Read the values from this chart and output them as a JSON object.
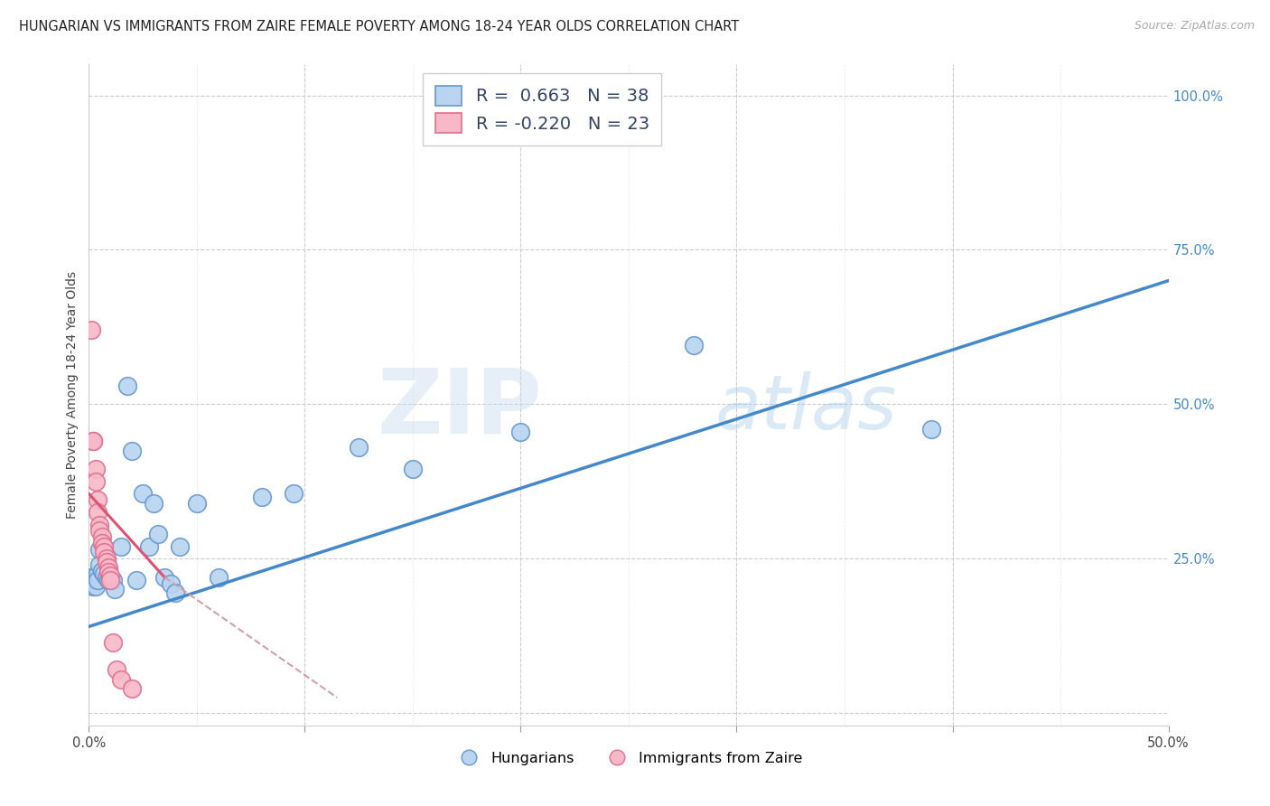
{
  "title": "HUNGARIAN VS IMMIGRANTS FROM ZAIRE FEMALE POVERTY AMONG 18-24 YEAR OLDS CORRELATION CHART",
  "source": "Source: ZipAtlas.com",
  "ylabel": "Female Poverty Among 18-24 Year Olds",
  "xlim": [
    0.0,
    0.5
  ],
  "ylim": [
    -0.02,
    1.05
  ],
  "background_color": "#ffffff",
  "grid_color": "#cccccc",
  "watermark_zip": "ZIP",
  "watermark_atlas": "atlas",
  "legend_label1": "Hungarians",
  "legend_label2": "Immigrants from Zaire",
  "blue_face": "#b8d4f0",
  "blue_edge": "#6699cc",
  "pink_face": "#f8b8c8",
  "pink_edge": "#e07090",
  "blue_line_color": "#4488cc",
  "pink_line_color": "#e05070",
  "pink_dash_color": "#d4a0a8",
  "blue_scatter": [
    [
      0.001,
      0.22
    ],
    [
      0.002,
      0.205
    ],
    [
      0.002,
      0.215
    ],
    [
      0.003,
      0.22
    ],
    [
      0.003,
      0.215
    ],
    [
      0.003,
      0.205
    ],
    [
      0.004,
      0.225
    ],
    [
      0.004,
      0.215
    ],
    [
      0.005,
      0.265
    ],
    [
      0.005,
      0.24
    ],
    [
      0.006,
      0.23
    ],
    [
      0.007,
      0.225
    ],
    [
      0.008,
      0.22
    ],
    [
      0.009,
      0.215
    ],
    [
      0.01,
      0.22
    ],
    [
      0.011,
      0.215
    ],
    [
      0.012,
      0.2
    ],
    [
      0.015,
      0.27
    ],
    [
      0.018,
      0.53
    ],
    [
      0.02,
      0.425
    ],
    [
      0.022,
      0.215
    ],
    [
      0.025,
      0.355
    ],
    [
      0.028,
      0.27
    ],
    [
      0.03,
      0.34
    ],
    [
      0.032,
      0.29
    ],
    [
      0.035,
      0.22
    ],
    [
      0.038,
      0.21
    ],
    [
      0.04,
      0.195
    ],
    [
      0.042,
      0.27
    ],
    [
      0.05,
      0.34
    ],
    [
      0.06,
      0.22
    ],
    [
      0.08,
      0.35
    ],
    [
      0.095,
      0.355
    ],
    [
      0.125,
      0.43
    ],
    [
      0.15,
      0.395
    ],
    [
      0.2,
      0.455
    ],
    [
      0.28,
      0.595
    ],
    [
      0.39,
      0.46
    ]
  ],
  "pink_scatter": [
    [
      0.001,
      0.62
    ],
    [
      0.002,
      0.44
    ],
    [
      0.002,
      0.44
    ],
    [
      0.003,
      0.395
    ],
    [
      0.003,
      0.375
    ],
    [
      0.004,
      0.345
    ],
    [
      0.004,
      0.325
    ],
    [
      0.005,
      0.305
    ],
    [
      0.005,
      0.295
    ],
    [
      0.006,
      0.285
    ],
    [
      0.006,
      0.275
    ],
    [
      0.007,
      0.27
    ],
    [
      0.007,
      0.26
    ],
    [
      0.008,
      0.25
    ],
    [
      0.008,
      0.245
    ],
    [
      0.009,
      0.235
    ],
    [
      0.009,
      0.228
    ],
    [
      0.01,
      0.222
    ],
    [
      0.01,
      0.215
    ],
    [
      0.011,
      0.115
    ],
    [
      0.013,
      0.07
    ],
    [
      0.015,
      0.055
    ],
    [
      0.02,
      0.04
    ]
  ],
  "blue_line": [
    0.0,
    0.14,
    0.5,
    0.7
  ],
  "pink_solid_line": [
    0.0,
    0.355,
    0.035,
    0.22
  ],
  "pink_dash_line": [
    0.035,
    0.22,
    0.115,
    0.025
  ],
  "title_fontsize": 10.5,
  "tick_fontsize": 10.5,
  "axis_label_fontsize": 10
}
